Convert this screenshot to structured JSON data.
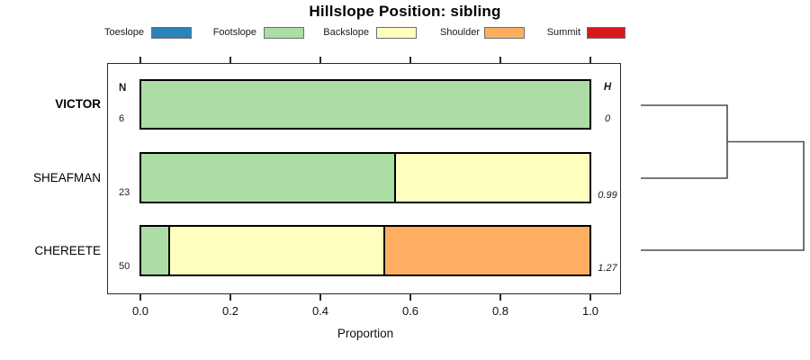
{
  "chart_data": {
    "type": "bar",
    "variant": "horizontal-stacked-proportion-with-dendrogram",
    "title": "Hillslope Position: sibling",
    "xlabel": "Proportion",
    "xlim": [
      0.0,
      1.0
    ],
    "x_ticks": [
      "0.0",
      "0.2",
      "0.4",
      "0.6",
      "0.8",
      "1.0"
    ],
    "grid": false,
    "headers": {
      "n": "N",
      "h": "H"
    },
    "legend": {
      "position": "top",
      "entries": [
        {
          "label": "Toeslope",
          "color": "#2B83BA"
        },
        {
          "label": "Footslope",
          "color": "#ABDDA4"
        },
        {
          "label": "Backslope",
          "color": "#FFFFBF"
        },
        {
          "label": "Shoulder",
          "color": "#FDAE61"
        },
        {
          "label": "Summit",
          "color": "#D7191C"
        }
      ]
    },
    "rows": [
      {
        "label": "VICTOR",
        "emphasis": true,
        "n": "6",
        "h": "0",
        "segments": [
          {
            "category": "Footslope",
            "proportion": 1.0
          }
        ]
      },
      {
        "label": "SHEAFMAN",
        "emphasis": false,
        "n": "23",
        "h": "0.99",
        "segments": [
          {
            "category": "Footslope",
            "proportion": 0.565
          },
          {
            "category": "Backslope",
            "proportion": 0.435
          }
        ]
      },
      {
        "label": "CHEREETE",
        "emphasis": false,
        "n": "50",
        "h": "1.27",
        "segments": [
          {
            "category": "Footslope",
            "proportion": 0.06
          },
          {
            "category": "Backslope",
            "proportion": 0.48
          },
          {
            "category": "Shoulder",
            "proportion": 0.46
          }
        ]
      }
    ],
    "dendrogram": {
      "orientation": "right",
      "leaves": [
        "VICTOR",
        "SHEAFMAN",
        "CHEREETE"
      ],
      "merges": [
        {
          "members": [
            "VICTOR",
            "SHEAFMAN"
          ]
        },
        {
          "members": [
            "VICTOR+SHEAFMAN",
            "CHEREETE"
          ]
        }
      ]
    }
  }
}
